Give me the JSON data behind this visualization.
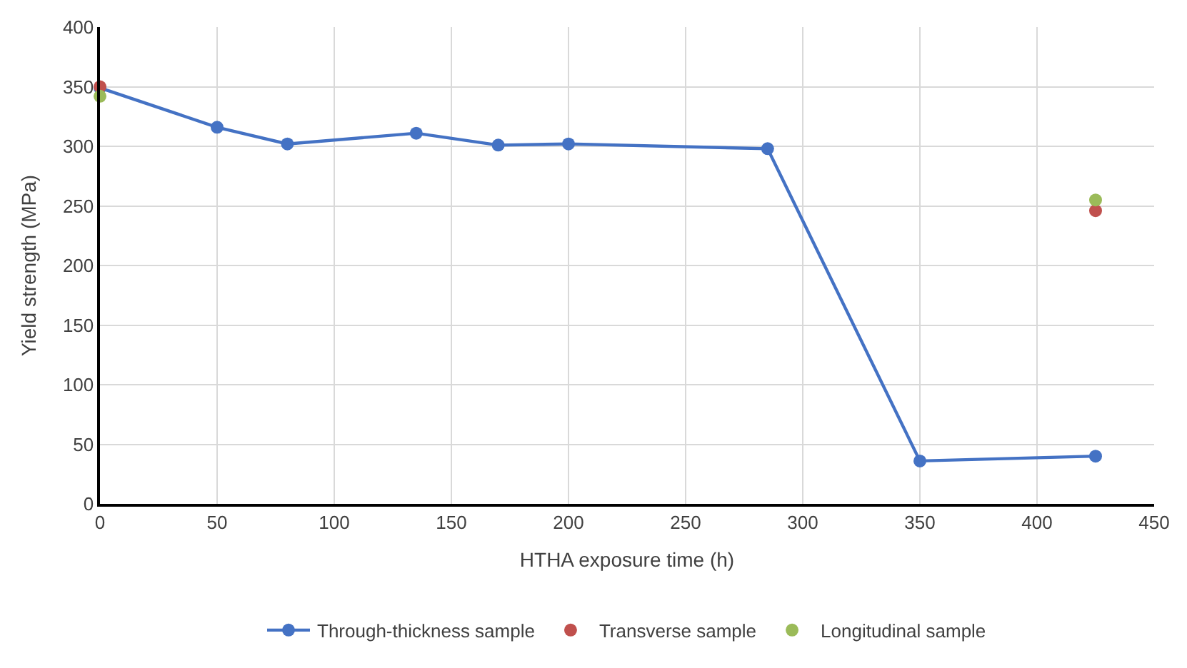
{
  "chart_data": {
    "type": "line",
    "xlabel": "HTHA exposure time (h)",
    "ylabel": "Yield strength (MPa)",
    "xlim": [
      0,
      450
    ],
    "xticks": [
      0,
      50,
      100,
      150,
      200,
      250,
      300,
      350,
      400,
      450
    ],
    "ylim": [
      0,
      400
    ],
    "yticks": [
      0,
      50,
      100,
      150,
      200,
      250,
      300,
      350,
      400
    ],
    "grid": true,
    "legend": "bottom",
    "marker": "circle",
    "line_style": "solid",
    "series": [
      {
        "name": "Through-thickness sample",
        "color": "#4472c4",
        "x": [
          0,
          50,
          80,
          135,
          170,
          200,
          285,
          350,
          425
        ],
        "values": [
          349,
          316,
          302,
          311,
          301,
          302,
          298,
          36,
          40
        ]
      },
      {
        "name": "Transverse sample",
        "type": "scatter",
        "color": "#c0504d",
        "x": [
          0,
          425
        ],
        "values": [
          350,
          246
        ]
      },
      {
        "name": "Longitudinal sample",
        "type": "scatter",
        "color": "#9bbb59",
        "x": [
          0,
          425
        ],
        "values": [
          342,
          255
        ]
      }
    ]
  }
}
